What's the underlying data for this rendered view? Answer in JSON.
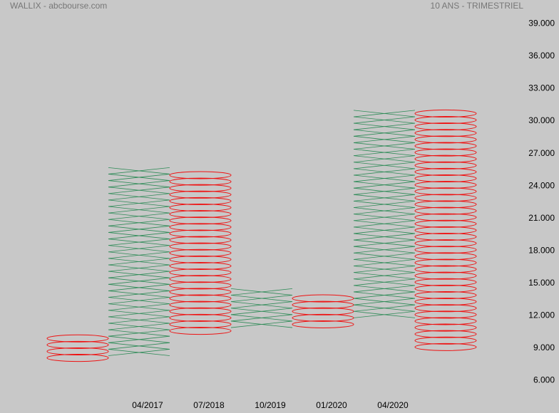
{
  "chart_data": {
    "type": "point-and-figure",
    "title": "WALLIX - abcbourse.com",
    "subtitle": "10 ANS - TRIMESTRIEL",
    "box_size": 0.6,
    "categories": [
      null,
      "04/2017",
      "07/2018",
      "10/2019",
      "01/2020",
      "04/2020",
      null
    ],
    "columns": [
      {
        "type": "O",
        "low": 7.8,
        "high": 10.2
      },
      {
        "type": "X",
        "low": 8.3,
        "high": 25.7
      },
      {
        "type": "O",
        "low": 10.3,
        "high": 25.3
      },
      {
        "type": "X",
        "low": 10.9,
        "high": 14.5
      },
      {
        "type": "O",
        "low": 10.9,
        "high": 13.9
      },
      {
        "type": "X",
        "low": 11.8,
        "high": 31.0
      },
      {
        "type": "O",
        "low": 8.8,
        "high": 31.0
      }
    ],
    "x_color": "#2e8b57",
    "o_color": "#ee1111",
    "ylim": [
      3,
      41.2
    ],
    "yticks": [
      {
        "value": 6,
        "label": "6.000"
      },
      {
        "value": 9,
        "label": "9.000"
      },
      {
        "value": 12,
        "label": "12.000"
      },
      {
        "value": 15,
        "label": "15.000"
      },
      {
        "value": 18,
        "label": "18.000"
      },
      {
        "value": 21,
        "label": "21.000"
      },
      {
        "value": 24,
        "label": "24.000"
      },
      {
        "value": 27,
        "label": "27.000"
      },
      {
        "value": 30,
        "label": "30.000"
      },
      {
        "value": 33,
        "label": "33.000"
      },
      {
        "value": 36,
        "label": "36.000"
      },
      {
        "value": 39,
        "label": "39.000"
      }
    ]
  }
}
